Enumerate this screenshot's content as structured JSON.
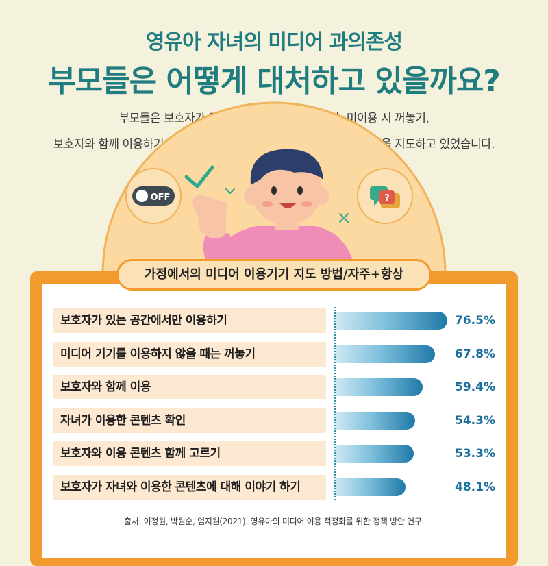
{
  "header": {
    "subtitle": "영유아 자녀의 미디어 과의존성",
    "title": "부모들은 어떻게 대처하고 있을까요?",
    "desc_line1": "부모들은 보호자가 있는 공간에서만 이용하거나, 미이용 시 꺼놓기,",
    "desc_line2": "보호자와 함께 이용하기 등의 방식으로 영유아 자녀의 미디어기기 이용을 지도하고 있었습니다."
  },
  "illustration": {
    "toggle_label": "OFF",
    "question_mark": "?"
  },
  "colors": {
    "teal": "#1f7c7f",
    "orange": "#f29a2e",
    "bar_dark": "#1f79a8",
    "label_bg": "#fde8d2"
  },
  "chart_data": {
    "type": "bar",
    "orientation": "horizontal",
    "title": "가정에서의 미디어 이용기기 지도 방법/자주+항상",
    "categories": [
      "보호자가 있는 공간에서만 이용하기",
      "미디어 기기를 이용하지 않을 때는 꺼놓기",
      "보호자와 함께 이용",
      "자녀가 이용한 콘텐츠 확인",
      "보호자와 이용 콘텐츠 함께 고르기",
      "보호자가 자녀와 이용한 콘텐츠에 대해 이야기 하기"
    ],
    "values": [
      76.5,
      67.8,
      59.4,
      54.3,
      53.3,
      48.1
    ],
    "value_labels": [
      "76.5%",
      "67.8%",
      "59.4%",
      "54.3%",
      "53.3%",
      "48.1%"
    ],
    "unit": "%",
    "xlim": [
      0,
      100
    ]
  },
  "footer": {
    "source": "출처: 이정원, 박원순, 엄지원(2021). 영유아의 미디어 이용 적정화를 위한 정책 방안 연구."
  }
}
